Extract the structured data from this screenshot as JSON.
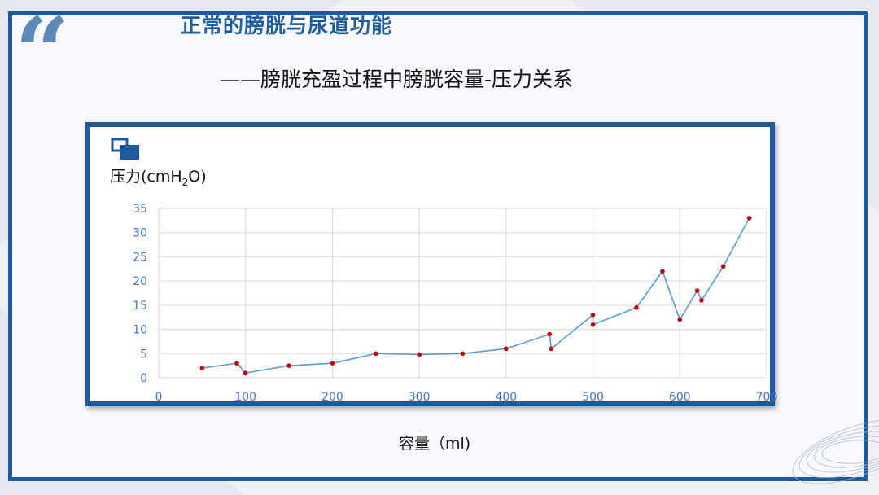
{
  "slide": {
    "title": "正常的膀胱与尿道功能",
    "subtitle": "——膀胱充盈过程中膀胱容量-压力关系",
    "quote_mark": "“"
  },
  "colors": {
    "frame": "#1f5b9c",
    "title": "#1f5d9c",
    "series_line": "#5b9bd5",
    "series_point": "#c00000",
    "tick_label": "#4472c4"
  },
  "chart_data": {
    "type": "line",
    "ylabel_main": "压力(cmH",
    "ylabel_sub": "2",
    "ylabel_end": "O)",
    "xlabel": "容量（ml)",
    "xlim": [
      0,
      700
    ],
    "ylim": [
      0,
      35
    ],
    "xticks": [
      0,
      100,
      200,
      300,
      400,
      500,
      600,
      700
    ],
    "yticks": [
      0,
      5,
      10,
      15,
      20,
      25,
      30,
      35
    ],
    "grid": true,
    "series": [
      {
        "x": [
          50,
          90,
          100,
          150,
          200,
          250,
          300,
          350,
          400,
          450,
          452,
          500,
          500,
          550,
          580,
          600,
          620,
          625,
          650,
          680
        ],
        "y": [
          2,
          3,
          1,
          2.5,
          3,
          5,
          4.8,
          5,
          6,
          9,
          6,
          13,
          11,
          14.5,
          22,
          12,
          18,
          16,
          23,
          33
        ]
      }
    ]
  }
}
